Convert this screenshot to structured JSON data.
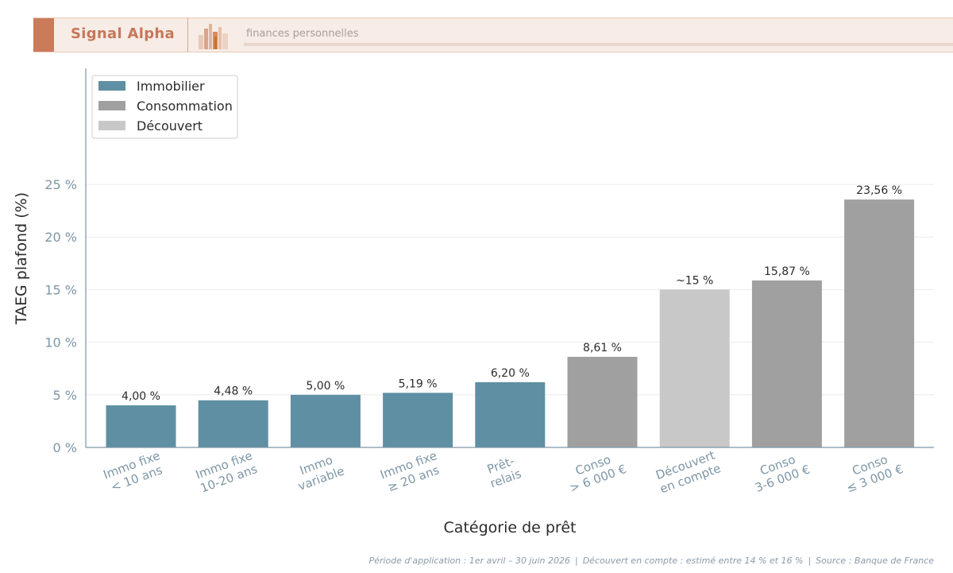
{
  "header": {
    "brand": "Signal Alpha",
    "subtitle": "finances personnelles",
    "colors": {
      "accent": "#c97b5a",
      "background": "#f7ece6"
    },
    "logo_icon": "city-skyline-icon"
  },
  "chart_data": {
    "type": "bar",
    "ylabel": "TAEG plafond (%)",
    "xlabel": "Catégorie de prêt",
    "ylim": [
      0,
      25
    ],
    "yticks": [
      "0 %",
      "5 %",
      "10 %",
      "15 %",
      "20 %",
      "25 %"
    ],
    "grid": true,
    "legend_position": "top-left",
    "legend": [
      {
        "name": "Immobilier",
        "color": "#5f8fa2"
      },
      {
        "name": "Consommation",
        "color": "#a0a0a0"
      },
      {
        "name": "Découvert",
        "color": "#c8c8c8"
      }
    ],
    "categories": [
      [
        "Immo fixe",
        "< 10 ans"
      ],
      [
        "Immo fixe",
        "10-20 ans"
      ],
      [
        "Immo",
        "variable"
      ],
      [
        "Immo fixe",
        "≥ 20 ans"
      ],
      [
        "Prêt-",
        "relais"
      ],
      [
        "Conso",
        "> 6 000 €"
      ],
      [
        "Découvert",
        "en compte"
      ],
      [
        "Conso",
        "3-6 000 €"
      ],
      [
        "Conso",
        "≤ 3 000 €"
      ]
    ],
    "values": [
      4.0,
      4.48,
      5.0,
      5.19,
      6.2,
      8.61,
      15,
      15.87,
      23.56
    ],
    "value_labels": [
      "4,00 %",
      "4,48 %",
      "5,00 %",
      "5,19 %",
      "6,20 %",
      "8,61 %",
      "~15 %",
      "15,87 %",
      "23,56 %"
    ],
    "groups": [
      0,
      0,
      0,
      0,
      0,
      1,
      2,
      1,
      1
    ]
  },
  "footer": {
    "parts": [
      "Période d'application : 1er avril – 30 juin 2026",
      "Découvert en compte : estimé entre 14 % et 16 %",
      "Source : Banque de France"
    ],
    "separator": "|"
  }
}
